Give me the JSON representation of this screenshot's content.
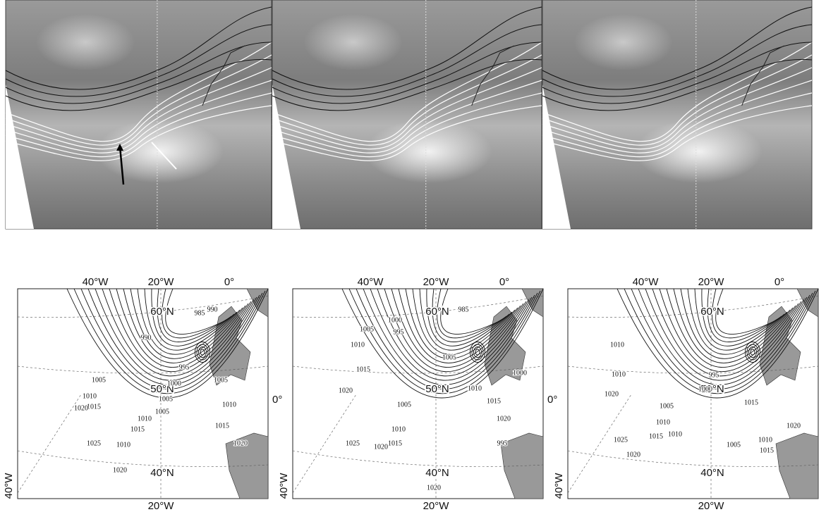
{
  "maps": [
    {
      "lon_labels": [
        "40°W",
        "20°W",
        "0°"
      ],
      "lat_labels": [
        "60°N",
        "50°N",
        "40°N"
      ],
      "right_label": "0°",
      "corner_label": "40°W",
      "bottom_label": "20°W",
      "isobars": [
        985,
        990,
        990,
        995,
        1000,
        1005,
        1010,
        1015,
        1020,
        1005,
        1010,
        1015,
        1020,
        1025,
        1005,
        1010,
        1015,
        1010,
        1005,
        1020
      ]
    },
    {
      "lon_labels": [
        "40°W",
        "20°W",
        "0°"
      ],
      "lat_labels": [
        "60°N",
        "50°N",
        "40°N"
      ],
      "right_label": "0°",
      "corner_label": "40°W",
      "bottom_label": "20°W",
      "isobars": [
        985,
        1000,
        995,
        1005,
        1010,
        1015,
        1020,
        995,
        1000,
        1005,
        1010,
        1015,
        1020,
        1025,
        1005,
        1010,
        1015,
        1020,
        1020
      ]
    },
    {
      "lon_labels": [
        "40°W",
        "20°W",
        "0°"
      ],
      "lat_labels": [
        "60°N",
        "50°N",
        "40°N"
      ],
      "corner_label": "40°W",
      "bottom_label": "20°W",
      "isobars": [
        1010,
        1010,
        1015,
        1020,
        995,
        1000,
        1005,
        1010,
        1015,
        1020,
        1025,
        1005,
        1010,
        1015,
        1020,
        1010
      ]
    }
  ]
}
